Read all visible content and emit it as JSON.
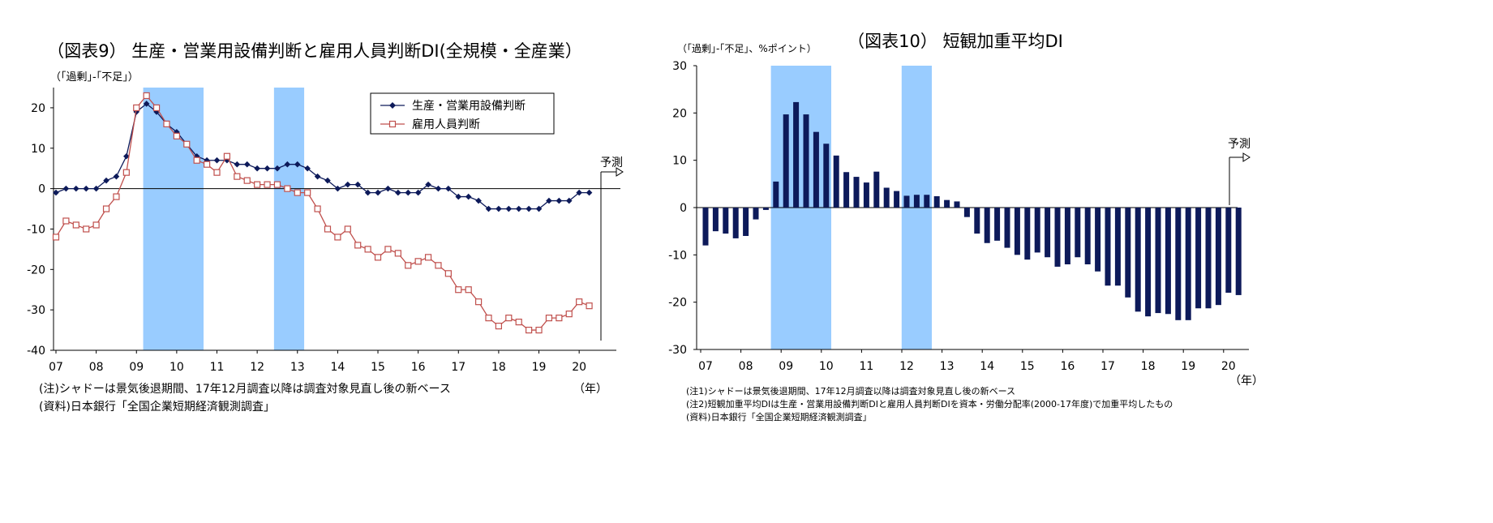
{
  "chart_data": [
    {
      "type": "line",
      "title": "（図表9） 生産・営業用設備判断と雇用人員判断DI(全規模・全産業）",
      "ylabel": "（｢過剰｣-｢不足｣）",
      "xlabel": "（年）",
      "ylim": [
        -40,
        25
      ],
      "yticks": [
        20,
        10,
        0,
        -10,
        -20,
        -30,
        -40
      ],
      "year_labels": [
        "07",
        "08",
        "09",
        "10",
        "11",
        "12",
        "13",
        "14",
        "15",
        "16",
        "17",
        "18",
        "19",
        "20"
      ],
      "shading": [
        {
          "from": 8.67,
          "to": 14.67
        },
        {
          "from": 21.67,
          "to": 24.67
        }
      ],
      "forecast_label": "予測",
      "forecast_index": 53,
      "series": [
        {
          "name": "生産・営業用設備判断",
          "color": "#0d1a5a",
          "marker": "diamond",
          "values": [
            -1,
            0,
            0,
            0,
            0,
            2,
            3,
            8,
            19,
            21,
            19,
            16,
            14,
            11,
            8,
            7,
            7,
            7,
            6,
            6,
            5,
            5,
            5,
            6,
            6,
            5,
            3,
            2,
            0,
            1,
            1,
            -1,
            -1,
            0,
            -1,
            -1,
            -1,
            1,
            0,
            0,
            -2,
            -2,
            -3,
            -5,
            -5,
            -5,
            -5,
            -5,
            -5,
            -3,
            -3,
            -3,
            -1,
            -1
          ]
        },
        {
          "name": "雇用人員判断",
          "color": "#c0504d",
          "marker": "square",
          "values": [
            -12,
            -8,
            -9,
            -10,
            -9,
            -5,
            -2,
            4,
            20,
            23,
            20,
            16,
            13,
            11,
            7,
            6,
            4,
            8,
            3,
            2,
            1,
            1,
            1,
            0,
            -1,
            -1,
            -5,
            -10,
            -12,
            -10,
            -14,
            -15,
            -17,
            -15,
            -16,
            -19,
            -18,
            -17,
            -19,
            -21,
            -25,
            -25,
            -28,
            -32,
            -34,
            -32,
            -33,
            -35,
            -35,
            -32,
            -32,
            -31,
            -28,
            -29
          ]
        }
      ],
      "notes": [
        "(注)シャドーは景気後退期間、17年12月調査以降は調査対象見直し後の新ベース",
        "(資料)日本銀行「全国企業短期経済観測調査」"
      ]
    },
    {
      "type": "bar",
      "title": "（図表10） 短観加重平均DI",
      "ylabel": "（｢過剰｣-｢不足｣、%ポイント）",
      "xlabel": "（年）",
      "ylim": [
        -30,
        30
      ],
      "yticks": [
        30,
        20,
        10,
        0,
        -10,
        -20,
        -30
      ],
      "year_labels": [
        "07",
        "08",
        "09",
        "10",
        "11",
        "12",
        "13",
        "14",
        "15",
        "16",
        "17",
        "18",
        "19",
        "20"
      ],
      "shading": [
        {
          "from": 6.5,
          "to": 12.5
        },
        {
          "from": 19.5,
          "to": 22.5
        }
      ],
      "forecast_label": "予測",
      "forecast_index": 53,
      "series": [
        {
          "name": "短観加重平均DI",
          "color": "#0d1a5a",
          "values": [
            -8,
            -5,
            -5.5,
            -6.5,
            -6,
            -2.5,
            -0.5,
            5.5,
            19.7,
            22.3,
            19.7,
            16,
            13.5,
            11,
            7.5,
            6.5,
            5.3,
            7.6,
            4.2,
            3.5,
            2.5,
            2.7,
            2.7,
            2.4,
            1.6,
            1.3,
            -2,
            -5.5,
            -7.5,
            -7,
            -8.5,
            -10,
            -11,
            -9.5,
            -10.5,
            -12.5,
            -12,
            -10.5,
            -12,
            -13.5,
            -16.5,
            -16.5,
            -19,
            -22,
            -23,
            -22.3,
            -22.5,
            -23.8,
            -23.8,
            -21.3,
            -21.3,
            -20.6,
            -18,
            -18.5
          ]
        }
      ],
      "notes": [
        "(注1)シャドーは景気後退期間、17年12月調査以降は調査対象見直し後の新ベース",
        "(注2)短観加重平均DIは生産・営業用設備判断DIと雇用人員判断DIを資本・労働分配率(2000-17年度)で加重平均したもの",
        "(資料)日本銀行「全国企業短期経済観測調査」"
      ]
    }
  ]
}
